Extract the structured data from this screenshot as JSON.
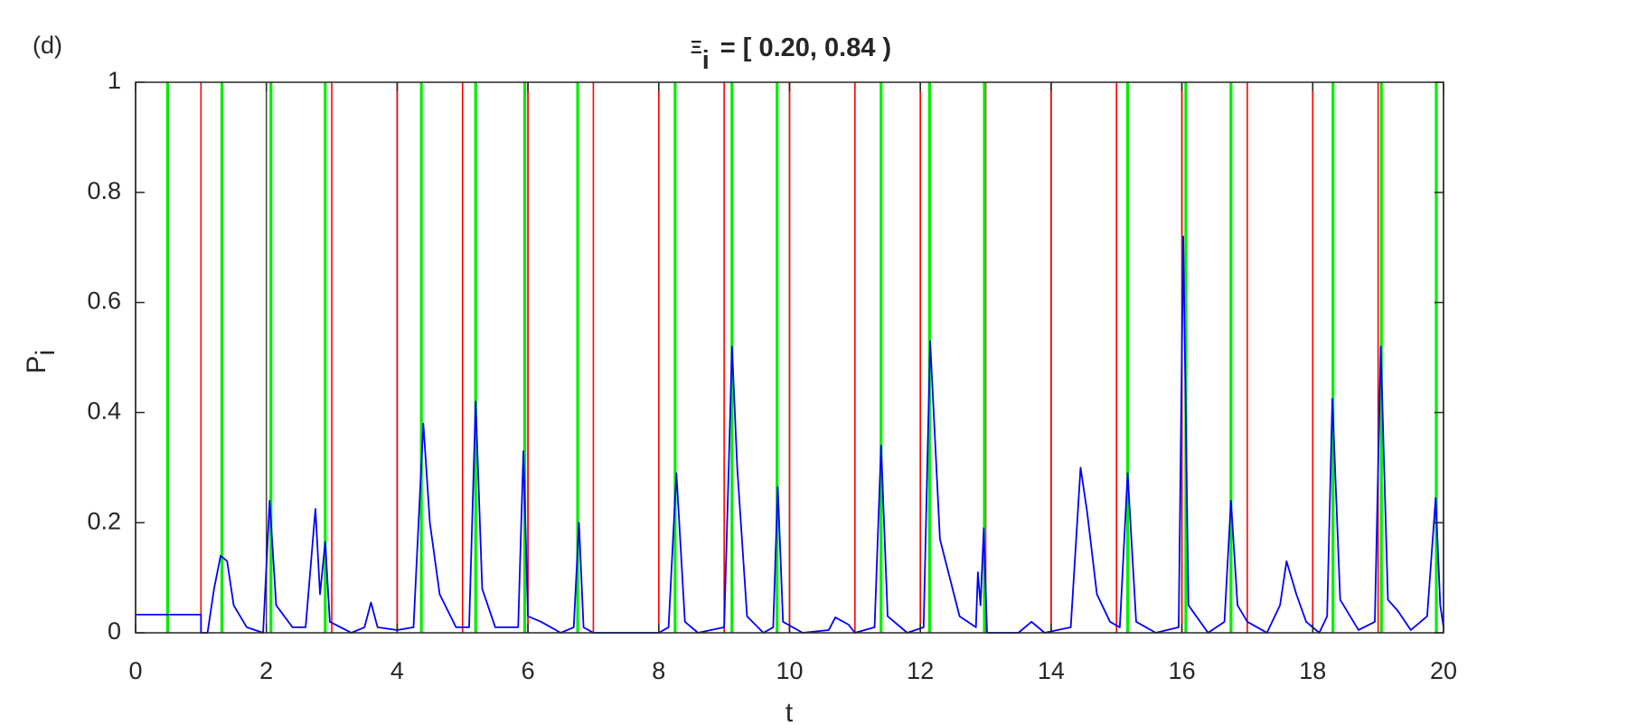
{
  "chart_data": {
    "type": "line",
    "panel_label": "(d)",
    "title_symbol": "Ξ",
    "title_subscript": "i",
    "title_rest": "= [ 0.20, 0.84 )",
    "x_label": "t",
    "y_label": "P",
    "y_label_subscript": "i",
    "xlim": [
      0,
      20
    ],
    "ylim": [
      0,
      1
    ],
    "xticks": [
      0,
      2,
      4,
      6,
      8,
      10,
      12,
      14,
      16,
      18,
      20
    ],
    "yticks": [
      0,
      0.2,
      0.4,
      0.6,
      0.8,
      1
    ],
    "x_grid": true,
    "event_lines": [
      {
        "color": "#ff0000",
        "x": [
          1,
          3,
          4,
          5,
          6,
          7,
          8,
          9,
          10,
          11,
          12,
          13,
          14,
          15,
          16,
          17,
          18,
          19
        ]
      },
      {
        "color": "#00ee00",
        "x": [
          0.49,
          1.32,
          2.07,
          2.9,
          4.37,
          5.2,
          5.95,
          6.76,
          8.25,
          9.12,
          9.81,
          11.4,
          12.14,
          12.98,
          15.17,
          16.06,
          16.75,
          18.31,
          19.05,
          19.89
        ]
      }
    ],
    "x": [
      0,
      1,
      1,
      1.1,
      1.2,
      1.3,
      1.4,
      1.5,
      1.7,
      1.95,
      2.05,
      2.15,
      2.4,
      2.6,
      2.75,
      2.82,
      2.9,
      2.97,
      3.3,
      3.5,
      3.6,
      3.7,
      4,
      4.25,
      4.4,
      4.5,
      4.65,
      4.9,
      5.1,
      5.2,
      5.3,
      5.5,
      5.85,
      5.93,
      6,
      6.2,
      6.5,
      6.7,
      6.78,
      6.85,
      7,
      8,
      8.15,
      8.27,
      8.4,
      8.6,
      9,
      9.07,
      9.12,
      9.2,
      9.35,
      9.6,
      9.75,
      9.82,
      9.9,
      10.2,
      10.6,
      10.7,
      10.9,
      11,
      11.3,
      11.4,
      11.5,
      11.8,
      12.05,
      12.15,
      12.3,
      12.45,
      12.6,
      12.85,
      12.88,
      12.92,
      12.97,
      13.02,
      13.5,
      13.7,
      13.9,
      14.3,
      14.45,
      14.55,
      14.7,
      14.9,
      15.05,
      15.17,
      15.3,
      15.6,
      15.95,
      16.02,
      16.1,
      16.4,
      16.65,
      16.75,
      16.85,
      17,
      17.3,
      17.5,
      17.6,
      17.75,
      17.9,
      18.1,
      18.22,
      18.3,
      18.42,
      18.7,
      18.95,
      19.04,
      19.15,
      19.3,
      19.5,
      19.75,
      19.88,
      19.95,
      20
    ],
    "series": [
      {
        "color": "#0000ff",
        "values": [
          0.033,
          0.033,
          0,
          0,
          0.08,
          0.14,
          0.13,
          0.05,
          0.01,
          0,
          0.24,
          0.05,
          0.01,
          0.01,
          0.225,
          0.07,
          0.165,
          0.02,
          0,
          0.01,
          0.055,
          0.01,
          0.005,
          0.01,
          0.38,
          0.2,
          0.07,
          0.01,
          0.01,
          0.42,
          0.08,
          0.01,
          0.01,
          0.33,
          0.03,
          0.02,
          0,
          0.01,
          0.2,
          0.01,
          0,
          0,
          0.01,
          0.29,
          0.02,
          0,
          0.01,
          0.3,
          0.52,
          0.3,
          0.03,
          0,
          0.01,
          0.265,
          0.02,
          0,
          0.005,
          0.028,
          0.015,
          0,
          0.01,
          0.34,
          0.03,
          0,
          0.01,
          0.53,
          0.17,
          0.1,
          0.03,
          0.01,
          0.11,
          0.05,
          0.19,
          0,
          0,
          0.02,
          0,
          0.01,
          0.3,
          0.22,
          0.07,
          0.02,
          0.01,
          0.29,
          0.02,
          0,
          0.01,
          0.72,
          0.05,
          0,
          0.02,
          0.24,
          0.05,
          0.02,
          0,
          0.05,
          0.13,
          0.07,
          0.02,
          0,
          0.03,
          0.425,
          0.06,
          0.005,
          0.02,
          0.52,
          0.06,
          0.04,
          0.005,
          0.03,
          0.245,
          0.05,
          0.01
        ]
      }
    ]
  }
}
